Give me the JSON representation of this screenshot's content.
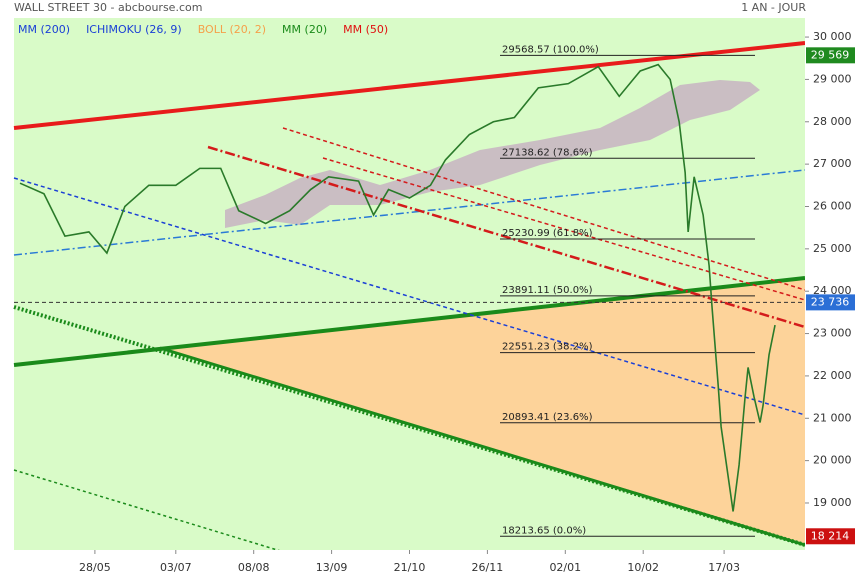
{
  "chart_data": {
    "type": "line",
    "title": "WALL STREET 30 - abcbourse.com",
    "period": "1 AN - JOUR",
    "legend": [
      {
        "name": "MM (200)",
        "color": "#1a3fd6"
      },
      {
        "name": "ICHIMOKU (26, 9)",
        "color": "#1a3fd6"
      },
      {
        "name": "BOLL (20, 2)",
        "color": "#f5a04a"
      },
      {
        "name": "MM (20)",
        "color": "#1a8a1a"
      },
      {
        "name": "MM (50)",
        "color": "#e01010"
      }
    ],
    "x": [
      2,
      10,
      17,
      25,
      31,
      37,
      45,
      54,
      62,
      69,
      75,
      84,
      92,
      99,
      105,
      115,
      120,
      125,
      132,
      139,
      144,
      152,
      160,
      167,
      175,
      185,
      195,
      202,
      209,
      215,
      219,
      222,
      224,
      225,
      227,
      230,
      232,
      233,
      235,
      236,
      238,
      240,
      242,
      244,
      245,
      247,
      249,
      250,
      252,
      254
    ],
    "series": [
      {
        "name": "WALL STREET 30",
        "color": "#2a7a2a",
        "values": [
          26550,
          26300,
          25300,
          25400,
          24900,
          26000,
          26500,
          26500,
          26900,
          26900,
          25900,
          25600,
          25900,
          26400,
          26700,
          26600,
          25800,
          26400,
          26200,
          26500,
          27100,
          27700,
          28000,
          28100,
          28800,
          28900,
          29300,
          28600,
          29200,
          29350,
          29000,
          28000,
          26800,
          25400,
          26700,
          25800,
          24600,
          23600,
          21800,
          20800,
          19800,
          18800,
          19900,
          21500,
          22200,
          21500,
          20900,
          21300,
          22500,
          23200
        ]
      }
    ],
    "xlim": [
      0,
      264
    ],
    "xticks": [
      {
        "value": 27,
        "label": "28/05"
      },
      {
        "value": 54,
        "label": "03/07"
      },
      {
        "value": 80,
        "label": "08/08"
      },
      {
        "value": 106,
        "label": "13/09"
      },
      {
        "value": 132,
        "label": "21/10"
      },
      {
        "value": 158,
        "label": "26/11"
      },
      {
        "value": 184,
        "label": "02/01"
      },
      {
        "value": 210,
        "label": "10/02"
      },
      {
        "value": 237,
        "label": "17/03"
      }
    ],
    "ylim": [
      17890,
      30450
    ],
    "yticks": [
      {
        "value": 19000,
        "label": "19 000"
      },
      {
        "value": 20000,
        "label": "20 000"
      },
      {
        "value": 21000,
        "label": "21 000"
      },
      {
        "value": 22000,
        "label": "22 000"
      },
      {
        "value": 23000,
        "label": "23 000"
      },
      {
        "value": 24000,
        "label": "24 000"
      },
      {
        "value": 25000,
        "label": "25 000"
      },
      {
        "value": 26000,
        "label": "26 000"
      },
      {
        "value": 27000,
        "label": "27 000"
      },
      {
        "value": 28000,
        "label": "28 000"
      },
      {
        "value": 29000,
        "label": "29 000"
      },
      {
        "value": 30000,
        "label": "30 000"
      }
    ],
    "fibonacci": [
      {
        "value": 29568.57,
        "label": "29568.57  (100.0%)"
      },
      {
        "value": 27138.62,
        "label": "27138.62  (78.6%)"
      },
      {
        "value": 25230.99,
        "label": "25230.99  (61.8%)"
      },
      {
        "value": 23891.11,
        "label": "23891.11  (50.0%)"
      },
      {
        "value": 22551.23,
        "label": "22551.23  (38.2%)"
      },
      {
        "value": 20893.41,
        "label": "20893.41  (23.6%)"
      },
      {
        "value": 18213.65,
        "label": "18213.65  (0.0%)"
      }
    ],
    "price_markers": [
      {
        "value": 29569,
        "label": "29 569",
        "color": "#1f8a1f"
      },
      {
        "value": 23736,
        "label": "23 736",
        "color": "#2b6fd6"
      },
      {
        "value": 18214,
        "label": "18 214",
        "color": "#cc1010"
      }
    ]
  }
}
